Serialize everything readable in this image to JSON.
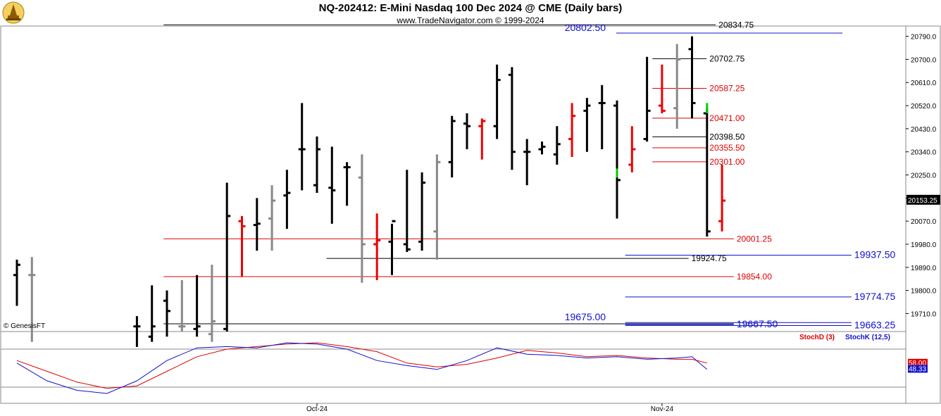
{
  "header": {
    "title": "NQ-202412:  E-Mini Nasdaq 100 Dec 2024 @ CME  (Daily bars)",
    "subtitle": "www.TradeNavigator.com © 1999-2024",
    "watermark": "© GenesisFT"
  },
  "colors": {
    "up": "#000000",
    "down": "#ee0000",
    "inside": "#888888",
    "green": "#00cc00",
    "blue_level": "#1010cc",
    "red_level": "#dd0000",
    "black_level": "#000000",
    "stochD": "#dd0000",
    "stochK": "#1010cc"
  },
  "chart_data": [
    {
      "type": "ohlc",
      "ylim": [
        19640,
        20830
      ],
      "y_ticks": [
        19710.0,
        19800.0,
        19890.0,
        19980.0,
        20070.0,
        20160.0,
        20250.0,
        20340.0,
        20430.0,
        20520.0,
        20610.0,
        20700.0,
        20790.0
      ],
      "y_tick_labels": [
        "19710.0",
        "19800.0",
        "19890.0",
        "19980.0",
        "20070.0",
        "",
        "20250.0",
        "20340.0",
        "20430.0",
        "20520.0",
        "20610.0",
        "20700.0",
        "20790.0"
      ],
      "last_price": "20153.25",
      "x_labels": [
        {
          "index": 20,
          "label": "Oct-24"
        },
        {
          "index": 43,
          "label": "Nov-24"
        }
      ],
      "bars": [
        {
          "i": 0,
          "o": 19860,
          "h": 19920,
          "l": 19740,
          "c": 19900,
          "color": "up"
        },
        {
          "i": 1,
          "o": 19860,
          "h": 19930,
          "l": 19600,
          "c": 19860,
          "color": "inside"
        },
        {
          "i": 8,
          "o": 19660,
          "h": 19700,
          "l": 19580,
          "c": 19660,
          "color": "up"
        },
        {
          "i": 9,
          "o": 19620,
          "h": 19820,
          "l": 19600,
          "c": 19660,
          "color": "up"
        },
        {
          "i": 10,
          "o": 19760,
          "h": 19800,
          "l": 19620,
          "c": 19720,
          "color": "up"
        },
        {
          "i": 11,
          "o": 19660,
          "h": 19840,
          "l": 19640,
          "c": 19660,
          "color": "inside"
        },
        {
          "i": 12,
          "o": 19650,
          "h": 19860,
          "l": 19620,
          "c": 19660,
          "color": "up"
        },
        {
          "i": 13,
          "o": 19630,
          "h": 19900,
          "l": 19600,
          "c": 19680,
          "color": "inside"
        },
        {
          "i": 14,
          "o": 19650,
          "h": 20220,
          "l": 19640,
          "c": 20090,
          "color": "up"
        },
        {
          "i": 15,
          "o": 20070,
          "h": 20090,
          "l": 19855,
          "c": 20050,
          "color": "down"
        },
        {
          "i": 16,
          "o": 20055,
          "h": 20160,
          "l": 19955,
          "c": 20060,
          "color": "up"
        },
        {
          "i": 17,
          "o": 20080,
          "h": 20210,
          "l": 19955,
          "c": 20150,
          "color": "inside"
        },
        {
          "i": 18,
          "o": 20170,
          "h": 20270,
          "l": 20040,
          "c": 20180,
          "color": "up"
        },
        {
          "i": 19,
          "o": 20350,
          "h": 20530,
          "l": 20190,
          "c": 20350,
          "color": "up"
        },
        {
          "i": 20,
          "o": 20210,
          "h": 20400,
          "l": 20180,
          "c": 20350,
          "color": "up"
        },
        {
          "i": 21,
          "o": 20200,
          "h": 20360,
          "l": 20060,
          "c": 20190,
          "color": "up"
        },
        {
          "i": 22,
          "o": 20280,
          "h": 20300,
          "l": 20130,
          "c": 20280,
          "color": "up"
        },
        {
          "i": 23,
          "o": 20240,
          "h": 20330,
          "l": 19830,
          "c": 19980,
          "color": "inside"
        },
        {
          "i": 24,
          "o": 19980,
          "h": 20100,
          "l": 19840,
          "c": 19995,
          "color": "down"
        },
        {
          "i": 25,
          "o": 19990,
          "h": 20060,
          "l": 19860,
          "c": 20070,
          "color": "up"
        },
        {
          "i": 26,
          "o": 19980,
          "h": 20270,
          "l": 19950,
          "c": 19960,
          "color": "up"
        },
        {
          "i": 27,
          "o": 19990,
          "h": 20260,
          "l": 19955,
          "c": 20220,
          "color": "up"
        },
        {
          "i": 28,
          "o": 20030,
          "h": 20330,
          "l": 19920,
          "c": 20300,
          "color": "inside"
        },
        {
          "i": 29,
          "o": 20300,
          "h": 20480,
          "l": 20240,
          "c": 20460,
          "color": "up"
        },
        {
          "i": 30,
          "o": 20450,
          "h": 20490,
          "l": 20350,
          "c": 20440,
          "color": "up"
        },
        {
          "i": 31,
          "o": 20440,
          "h": 20470,
          "l": 20310,
          "c": 20460,
          "color": "down"
        },
        {
          "i": 32,
          "o": 20440,
          "h": 20680,
          "l": 20390,
          "c": 20620,
          "color": "up"
        },
        {
          "i": 33,
          "o": 20640,
          "h": 20670,
          "l": 20270,
          "c": 20340,
          "color": "up"
        },
        {
          "i": 34,
          "o": 20340,
          "h": 20390,
          "l": 20210,
          "c": 20340,
          "color": "up"
        },
        {
          "i": 35,
          "o": 20350,
          "h": 20380,
          "l": 20330,
          "c": 20360,
          "color": "up"
        },
        {
          "i": 36,
          "o": 20330,
          "h": 20440,
          "l": 20290,
          "c": 20370,
          "color": "up"
        },
        {
          "i": 37,
          "o": 20390,
          "h": 20530,
          "l": 20320,
          "c": 20480,
          "color": "down"
        },
        {
          "i": 38,
          "o": 20500,
          "h": 20550,
          "l": 20340,
          "c": 20520,
          "color": "up"
        },
        {
          "i": 39,
          "o": 20530,
          "h": 20600,
          "l": 20350,
          "c": 20530,
          "color": "up"
        },
        {
          "i": 40,
          "o": 20520,
          "h": 20540,
          "l": 20080,
          "c": 20230,
          "color": "up"
        },
        {
          "i": 41,
          "o": 20290,
          "h": 20440,
          "l": 20260,
          "c": 20350,
          "color": "down"
        },
        {
          "i": 42,
          "o": 20390,
          "h": 20710,
          "l": 20380,
          "c": 20500,
          "color": "up"
        },
        {
          "i": 43,
          "o": 20520,
          "h": 20680,
          "l": 20490,
          "c": 20500,
          "color": "down"
        },
        {
          "i": 44,
          "o": 20510,
          "h": 20760,
          "l": 20430,
          "c": 20700,
          "color": "inside"
        },
        {
          "i": 45,
          "o": 20740,
          "h": 20790,
          "l": 20470,
          "c": 20530,
          "color": "up"
        },
        {
          "i": 46,
          "o": 20490,
          "h": 20510,
          "l": 20010,
          "c": 20030,
          "color": "up"
        },
        {
          "i": 47,
          "o": 20070,
          "h": 20290,
          "l": 20030,
          "c": 20150,
          "color": "down"
        }
      ],
      "green_marks": [
        {
          "i": 40,
          "from": 20240,
          "to": 20275
        },
        {
          "i": 46,
          "from": 20490,
          "to": 20530
        }
      ],
      "levels": [
        {
          "value": 20834.75,
          "label": "20834.75",
          "color": "black_level",
          "x1": 0.18,
          "x2": 0.79,
          "lx": 0.79
        },
        {
          "value": 20802.5,
          "label": "20802.50",
          "color": "blue_level",
          "x1": 0.68,
          "x2": 0.93,
          "lx": 0.62,
          "above": true
        },
        {
          "value": 20702.75,
          "label": "20702.75",
          "color": "black_level",
          "x1": 0.72,
          "x2": 0.78,
          "lx": 0.78
        },
        {
          "value": 20587.25,
          "label": "20587.25",
          "color": "red_level",
          "x1": 0.72,
          "x2": 0.78,
          "lx": 0.78
        },
        {
          "value": 20471.0,
          "label": "20471.00",
          "color": "red_level",
          "x1": 0.72,
          "x2": 0.78,
          "lx": 0.78
        },
        {
          "value": 20398.5,
          "label": "20398.50",
          "color": "black_level",
          "x1": 0.72,
          "x2": 0.78,
          "lx": 0.78
        },
        {
          "value": 20355.5,
          "label": "20355.50",
          "color": "red_level",
          "x1": 0.72,
          "x2": 0.78,
          "lx": 0.78
        },
        {
          "value": 20301.0,
          "label": "20301.00",
          "color": "red_level",
          "x1": 0.72,
          "x2": 0.78,
          "lx": 0.78
        },
        {
          "value": 20001.25,
          "label": "20001.25",
          "color": "red_level",
          "x1": 0.18,
          "x2": 0.81,
          "lx": 0.81
        },
        {
          "value": 19937.5,
          "label": "19937.50",
          "color": "blue_level",
          "x1": 0.69,
          "x2": 0.94,
          "lx": 0.94
        },
        {
          "value": 19924.75,
          "label": "19924.75",
          "color": "black_level",
          "x1": 0.36,
          "x2": 0.76,
          "lx": 0.76
        },
        {
          "value": 19854.0,
          "label": "19854.00",
          "color": "red_level",
          "x1": 0.18,
          "x2": 0.81,
          "lx": 0.81
        },
        {
          "value": 19774.75,
          "label": "19774.75",
          "color": "blue_level",
          "x1": 0.69,
          "x2": 0.94,
          "lx": 0.94
        },
        {
          "value": 19675.0,
          "label": "19675.00",
          "color": "blue_level",
          "x1": 0.69,
          "x2": 0.94,
          "lx": 0.62,
          "above": true
        },
        {
          "value": 19667.5,
          "label": "19667.50",
          "color": "blue_level",
          "x1": 0.69,
          "x2": 0.81,
          "lx": 0.81
        },
        {
          "value": 19663.25,
          "label": "19663.25",
          "color": "blue_level",
          "x1": 0.69,
          "x2": 0.94,
          "lx": 0.94
        },
        {
          "value": 19670.0,
          "label": "",
          "color": "black_level",
          "x1": 0.18,
          "x2": 0.81,
          "lx": 0.81
        }
      ]
    },
    {
      "type": "line",
      "legend": [
        "StochD (3)",
        "StochK (12,5)"
      ],
      "ylim": [
        0,
        100
      ],
      "ref_lines": [
        80,
        20
      ],
      "last_values": {
        "d": "58.00",
        "k": "48.33"
      },
      "series": [
        {
          "name": "StochD (3)",
          "color": "stochD",
          "points": [
            [
              0,
              62
            ],
            [
              2,
              45
            ],
            [
              4,
              28
            ],
            [
              6,
              18
            ],
            [
              8,
              22
            ],
            [
              10,
              45
            ],
            [
              12,
              68
            ],
            [
              14,
              80
            ],
            [
              16,
              84
            ],
            [
              18,
              88
            ],
            [
              20,
              90
            ],
            [
              22,
              84
            ],
            [
              24,
              76
            ],
            [
              26,
              58
            ],
            [
              28,
              52
            ],
            [
              30,
              56
            ],
            [
              32,
              66
            ],
            [
              34,
              78
            ],
            [
              36,
              74
            ],
            [
              38,
              68
            ],
            [
              40,
              70
            ],
            [
              42,
              66
            ],
            [
              44,
              64
            ],
            [
              45,
              64
            ],
            [
              46,
              58
            ]
          ]
        },
        {
          "name": "StochK (12,5)",
          "color": "stochK",
          "points": [
            [
              0,
              58
            ],
            [
              2,
              30
            ],
            [
              4,
              15
            ],
            [
              6,
              10
            ],
            [
              8,
              30
            ],
            [
              10,
              62
            ],
            [
              12,
              82
            ],
            [
              14,
              84
            ],
            [
              16,
              82
            ],
            [
              18,
              90
            ],
            [
              20,
              88
            ],
            [
              22,
              80
            ],
            [
              24,
              62
            ],
            [
              26,
              54
            ],
            [
              28,
              48
            ],
            [
              30,
              62
            ],
            [
              32,
              82
            ],
            [
              34,
              72
            ],
            [
              36,
              70
            ],
            [
              38,
              66
            ],
            [
              40,
              68
            ],
            [
              42,
              64
            ],
            [
              44,
              66
            ],
            [
              45,
              68
            ],
            [
              46,
              48
            ]
          ]
        }
      ]
    }
  ]
}
